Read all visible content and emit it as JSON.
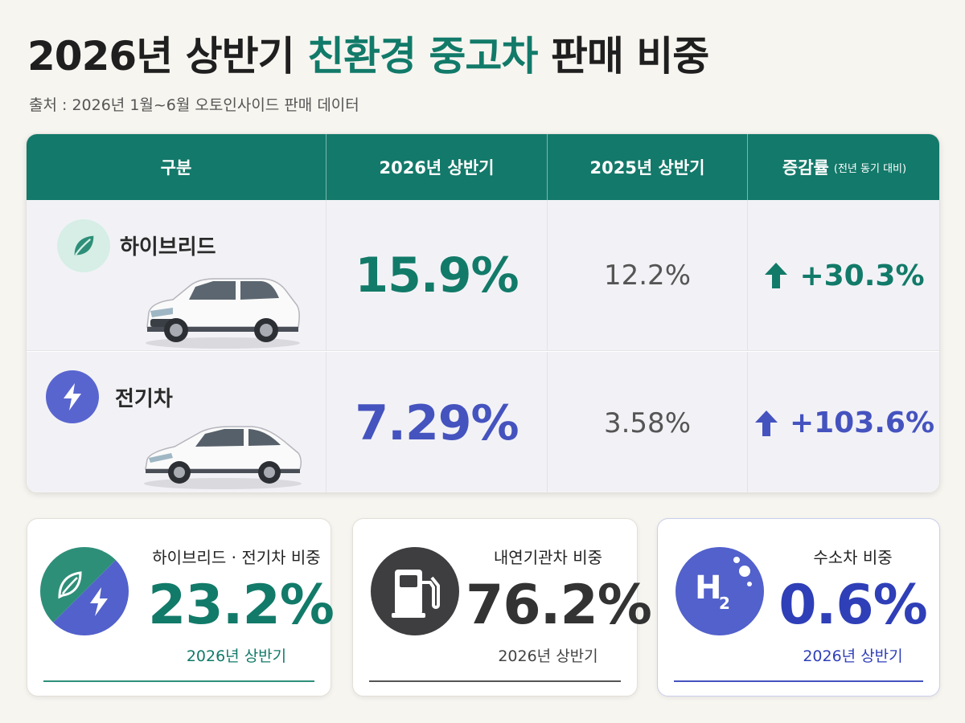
{
  "header": {
    "title_prefix": "2026년 상반기 ",
    "title_highlight": "친환경 중고차",
    "title_suffix": " 판매 비중",
    "source": "출처 : 2026년 1월~6월 오토인사이드 판매 데이터"
  },
  "table": {
    "columns": {
      "category": "구분",
      "current": "2026년 상반기",
      "previous": "2025년 상반기",
      "change": "증감률",
      "change_note": "(전년 동기 대비)"
    },
    "rows": [
      {
        "label": "하이브리드",
        "icon": "leaf-icon",
        "current": "15.9%",
        "previous": "12.2%",
        "change": "+30.3%",
        "color": "#127a69"
      },
      {
        "label": "전기차",
        "icon": "lightning-icon",
        "current": "7.29%",
        "previous": "3.58%",
        "change": "+103.6%",
        "color": "#4553bf"
      }
    ]
  },
  "cards": [
    {
      "title": "하이브리드 · 전기차 비중",
      "value": "23.2%",
      "period": "2026년 상반기",
      "icon": "leaf-lightning-icon",
      "color": "#127a69"
    },
    {
      "title": "내연기관차 비중",
      "value": "76.2%",
      "period": "2026년 상반기",
      "icon": "fuel-pump-icon",
      "color": "#333333"
    },
    {
      "title": "수소차 비중",
      "value": "0.6%",
      "period": "2026년 상반기",
      "icon": "h2-icon",
      "icon_text": "H",
      "icon_sub": "2",
      "color": "#2f3fb8"
    }
  ],
  "colors": {
    "accent": "#13796a",
    "electric": "#4553bf",
    "hydrogen": "#2f3fb8"
  }
}
